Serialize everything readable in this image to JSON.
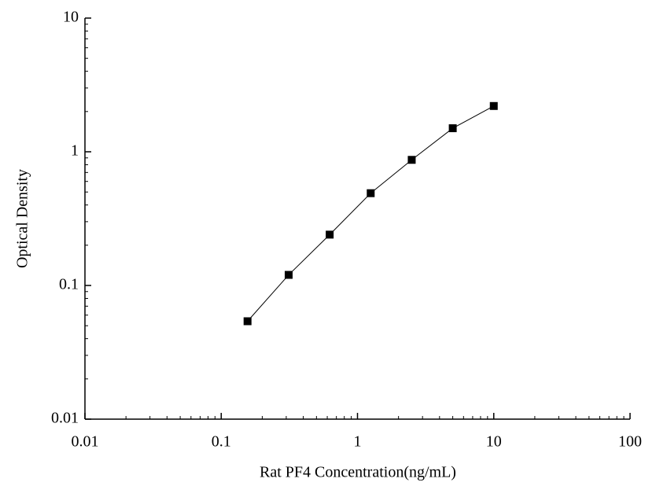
{
  "chart_data": {
    "type": "line",
    "x_label": "Rat PF4 Concentration(ng/mL)",
    "y_label": "Optical Density",
    "x": [
      0.156,
      0.3125,
      0.625,
      1.25,
      2.5,
      5,
      10
    ],
    "series": [
      {
        "color": "#000000",
        "marker": "square",
        "values": [
          0.054,
          0.12,
          0.24,
          0.49,
          0.87,
          1.5,
          2.2
        ]
      }
    ],
    "xlim": [
      0.01,
      100
    ],
    "ylim": [
      0.01,
      10
    ],
    "xticks": [
      0.01,
      0.1,
      1,
      10,
      100
    ],
    "yticks": [
      0.01,
      0.1,
      1,
      10
    ],
    "xlog": true,
    "ylog": true,
    "grid": false
  }
}
